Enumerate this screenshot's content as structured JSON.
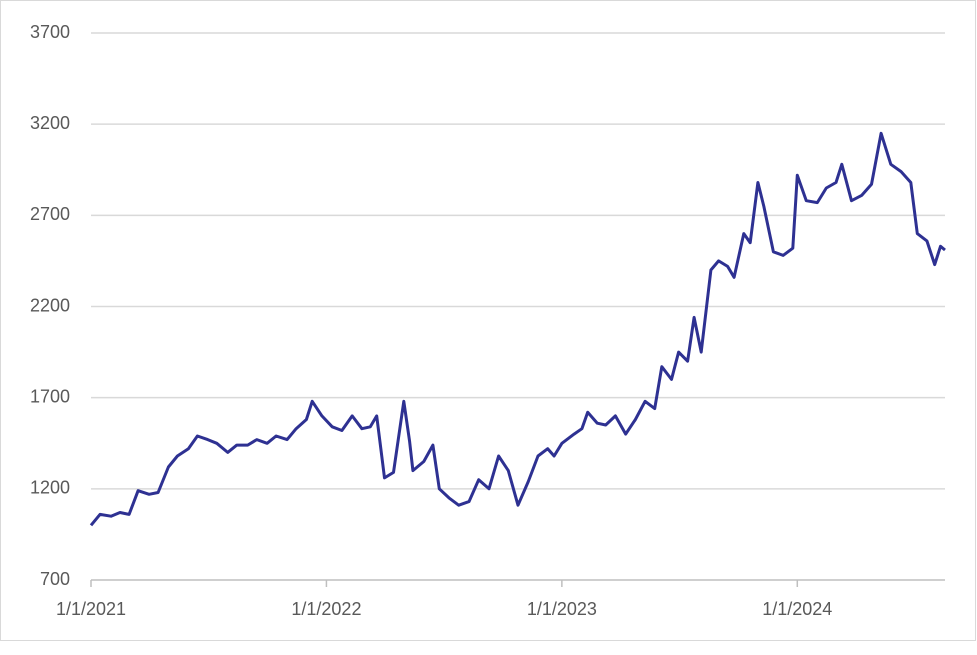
{
  "chart_data": {
    "type": "line",
    "x": [
      "1/1/2021",
      "1/15/2021",
      "2/1/2021",
      "2/15/2021",
      "3/1/2021",
      "3/15/2021",
      "4/1/2021",
      "4/15/2021",
      "5/1/2021",
      "5/15/2021",
      "6/1/2021",
      "6/15/2021",
      "7/1/2021",
      "7/15/2021",
      "8/1/2021",
      "8/15/2021",
      "9/1/2021",
      "9/15/2021",
      "10/1/2021",
      "10/15/2021",
      "11/1/2021",
      "11/15/2021",
      "12/1/2021",
      "12/10/2021",
      "12/25/2021",
      "1/10/2022",
      "1/25/2022",
      "2/10/2022",
      "2/25/2022",
      "3/10/2022",
      "3/20/2022",
      "4/1/2022",
      "4/15/2022",
      "5/1/2022",
      "5/10/2022",
      "5/15/2022",
      "6/1/2022",
      "6/15/2022",
      "6/25/2022",
      "7/10/2022",
      "7/25/2022",
      "8/10/2022",
      "8/25/2022",
      "9/10/2022",
      "9/25/2022",
      "10/10/2022",
      "10/25/2022",
      "11/10/2022",
      "11/25/2022",
      "12/10/2022",
      "12/20/2022",
      "1/1/2023",
      "1/20/2023",
      "2/1/2023",
      "2/10/2023",
      "2/25/2023",
      "3/10/2023",
      "3/25/2023",
      "4/10/2023",
      "4/25/2023",
      "5/10/2023",
      "5/25/2023",
      "6/5/2023",
      "6/20/2023",
      "7/1/2023",
      "7/15/2023",
      "7/25/2023",
      "8/5/2023",
      "8/20/2023",
      "9/1/2023",
      "9/15/2023",
      "9/25/2023",
      "10/10/2023",
      "10/20/2023",
      "11/1/2023",
      "11/10/2023",
      "11/25/2023",
      "12/10/2023",
      "12/25/2023",
      "1/1/2024",
      "1/15/2024",
      "2/1/2024",
      "2/15/2024",
      "3/1/2024",
      "3/10/2024",
      "3/25/2024",
      "4/10/2024",
      "4/25/2024",
      "5/10/2024",
      "5/25/2024",
      "6/10/2024",
      "6/25/2024",
      "7/5/2024",
      "7/20/2024",
      "8/1/2024",
      "8/10/2024",
      "8/17/2024"
    ],
    "series": [
      {
        "color": "#2e3192",
        "values": [
          1000,
          1060,
          1050,
          1070,
          1060,
          1190,
          1170,
          1180,
          1320,
          1380,
          1420,
          1490,
          1470,
          1450,
          1400,
          1440,
          1440,
          1470,
          1450,
          1490,
          1470,
          1530,
          1580,
          1680,
          1600,
          1540,
          1520,
          1600,
          1530,
          1540,
          1600,
          1260,
          1290,
          1680,
          1460,
          1300,
          1350,
          1440,
          1200,
          1150,
          1110,
          1130,
          1250,
          1200,
          1380,
          1300,
          1110,
          1240,
          1380,
          1420,
          1380,
          1450,
          1500,
          1530,
          1620,
          1560,
          1550,
          1600,
          1500,
          1580,
          1680,
          1640,
          1870,
          1800,
          1950,
          1900,
          2140,
          1950,
          2400,
          2450,
          2420,
          2360,
          2600,
          2550,
          2880,
          2750,
          2500,
          2480,
          2520,
          2920,
          2780,
          2770,
          2850,
          2880,
          2980,
          2780,
          2810,
          2870,
          3150,
          2980,
          2940,
          2880,
          2600,
          2560,
          2430,
          2530,
          2510
        ]
      }
    ],
    "xlim": [
      "1/1/2021",
      "8/17/2024"
    ],
    "xticks": [
      "1/1/2021",
      "1/1/2022",
      "1/1/2023",
      "1/1/2024"
    ],
    "ylim": [
      700,
      3700
    ],
    "yticks": [
      700,
      1200,
      1700,
      2200,
      2700,
      3200,
      3700
    ],
    "grid": true
  }
}
